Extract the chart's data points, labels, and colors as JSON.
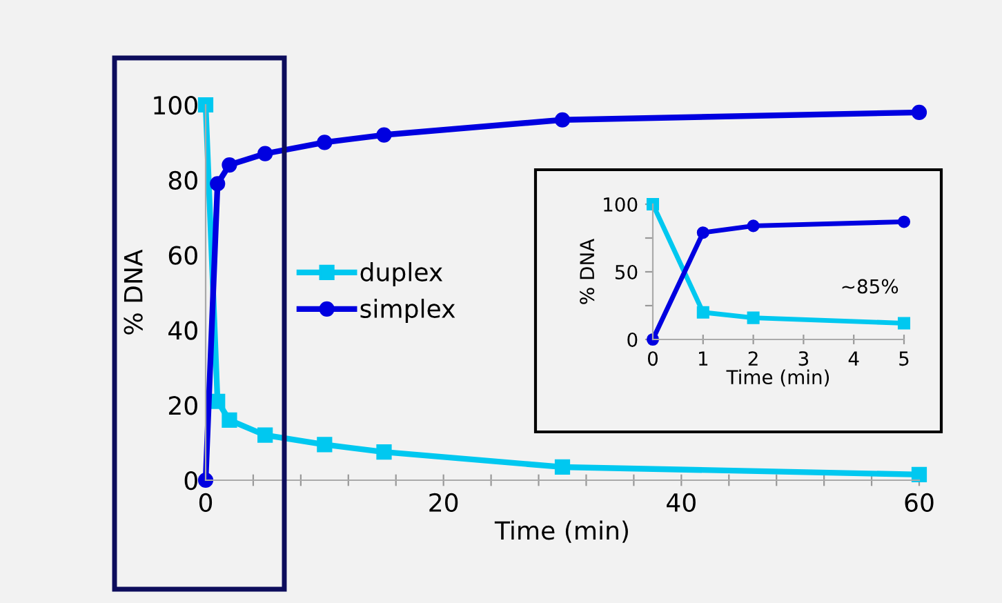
{
  "chart_data": [
    {
      "type": "line",
      "xlabel": "Time (min)",
      "ylabel": "% DNA",
      "x": [
        0,
        1,
        2,
        5,
        10,
        15,
        30,
        60
      ],
      "xlim": [
        0,
        60
      ],
      "ylim": [
        0,
        100
      ],
      "xticks": [
        0,
        {
          "value": 4,
          "label": null
        },
        {
          "value": 8,
          "label": null
        },
        {
          "value": 12,
          "label": null
        },
        {
          "value": 16,
          "label": null
        },
        20,
        {
          "value": 24,
          "label": null
        },
        {
          "value": 28,
          "label": null
        },
        {
          "value": 32,
          "label": null
        },
        {
          "value": 36,
          "label": null
        },
        40,
        {
          "value": 44,
          "label": null
        },
        {
          "value": 48,
          "label": null
        },
        {
          "value": 52,
          "label": null
        },
        {
          "value": 56,
          "label": null
        },
        60
      ],
      "yticks": [
        0,
        20,
        40,
        60,
        80,
        100
      ],
      "legend": "left",
      "grid": false,
      "series": [
        {
          "name": "duplex",
          "color": "#00c8f0",
          "marker": "square",
          "values": [
            100,
            21,
            16,
            12,
            9.5,
            7.5,
            3.5,
            1.5
          ]
        },
        {
          "name": "simplex",
          "color": "#0000e0",
          "marker": "circle",
          "values": [
            0,
            79,
            84,
            87,
            90,
            92,
            96,
            98
          ]
        }
      ]
    },
    {
      "type": "line",
      "xlabel": "Time (min)",
      "ylabel": "% DNA",
      "x": [
        0,
        1,
        2,
        5
      ],
      "xlim": [
        0,
        5
      ],
      "ylim": [
        0,
        100
      ],
      "xticks": [
        0,
        1,
        2,
        3,
        4,
        5
      ],
      "yticks": [
        0,
        {
          "value": 25,
          "label": null
        },
        50,
        {
          "value": 75,
          "label": null
        },
        100
      ],
      "grid": false,
      "annotations": [
        "~85%"
      ],
      "series": [
        {
          "color": "#00c8f0",
          "marker": "square",
          "values": [
            100,
            20,
            16,
            12
          ]
        },
        {
          "color": "#0000e0",
          "marker": "circle",
          "values": [
            0,
            79,
            84,
            87
          ]
        }
      ]
    }
  ]
}
